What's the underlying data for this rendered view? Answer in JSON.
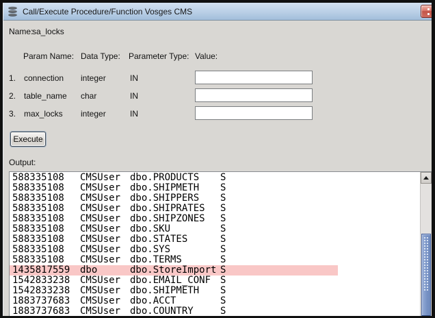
{
  "window": {
    "title": "Call/Execute Procedure/Function Vosges CMS",
    "titlebar_gradient_top": "#d3e1f1",
    "titlebar_gradient_bottom": "#a2bedb",
    "client_background": "#d9d7d3"
  },
  "name_row": {
    "label": "Name:",
    "value": "sa_locks"
  },
  "param_table": {
    "headers": {
      "param_name": "Param Name:",
      "data_type": "Data Type:",
      "parameter_type": "Parameter Type:",
      "value": "Value:"
    },
    "rows": [
      {
        "index": "1.",
        "param_name": "connection",
        "data_type": "integer",
        "parameter_type": "IN",
        "value": ""
      },
      {
        "index": "2.",
        "param_name": "table_name",
        "data_type": "char",
        "parameter_type": "IN",
        "value": ""
      },
      {
        "index": "3.",
        "param_name": "max_locks",
        "data_type": "integer",
        "parameter_type": "IN",
        "value": ""
      }
    ]
  },
  "execute_button_label": "Execute",
  "output_label": "Output:",
  "output": {
    "rows": [
      [
        "588335108",
        "CMSUser",
        "dbo.PRODUCTS",
        "S"
      ],
      [
        "588335108",
        "CMSUser",
        "dbo.SHIPMETH",
        "S"
      ],
      [
        "588335108",
        "CMSUser",
        "dbo.SHIPPERS",
        "S"
      ],
      [
        "588335108",
        "CMSUser",
        "dbo.SHIPRATES",
        "S"
      ],
      [
        "588335108",
        "CMSUser",
        "dbo.SHIPZONES",
        "S"
      ],
      [
        "588335108",
        "CMSUser",
        "dbo.SKU",
        "S"
      ],
      [
        "588335108",
        "CMSUser",
        "dbo.STATES",
        "S"
      ],
      [
        "588335108",
        "CMSUser",
        "dbo.SYS",
        "S"
      ],
      [
        "588335108",
        "CMSUser",
        "dbo.TERMS",
        "S"
      ],
      [
        "1435817559",
        "dbo",
        "dbo.StoreImport",
        "S"
      ],
      [
        "1542833238",
        "CMSUser",
        "dbo.EMAIL_CONF",
        "S"
      ],
      [
        "1542833238",
        "CMSUser",
        "dbo.SHIPMETH",
        "S"
      ],
      [
        "1883737683",
        "CMSUser",
        "dbo.ACCT",
        "S"
      ],
      [
        "1883737683",
        "CMSUser",
        "dbo.COUNTRY",
        "S"
      ]
    ],
    "highlighted_row_index": 9,
    "highlight_color": "#f9c7c6",
    "scrollbar_thumb_color": "#7e97c8"
  }
}
